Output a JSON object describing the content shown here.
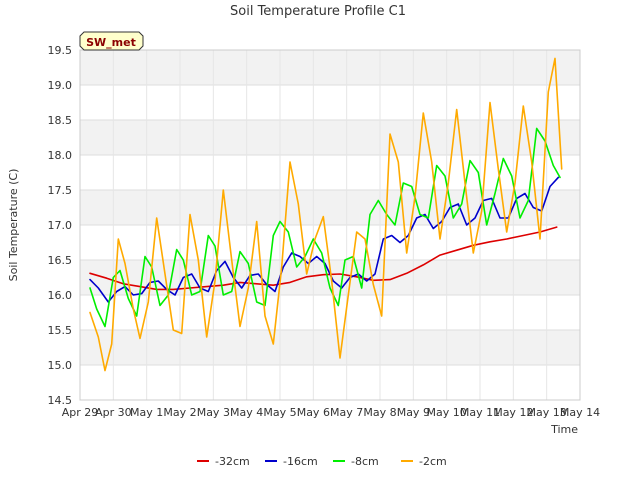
{
  "chart_data": {
    "type": "line",
    "title": "Soil Temperature Profile C1",
    "xlabel": "Time",
    "ylabel": "Soil Temperature (C)",
    "badge": "SW_met",
    "xlim": [
      0,
      15
    ],
    "ylim": [
      14.5,
      19.5
    ],
    "xticks": [
      {
        "v": 0,
        "label": "Apr 29"
      },
      {
        "v": 1,
        "label": "Apr 30"
      },
      {
        "v": 2,
        "label": "May 1"
      },
      {
        "v": 3,
        "label": "May 2"
      },
      {
        "v": 4,
        "label": "May 3"
      },
      {
        "v": 5,
        "label": "May 4"
      },
      {
        "v": 6,
        "label": "May 5"
      },
      {
        "v": 7,
        "label": "May 6"
      },
      {
        "v": 8,
        "label": "May 7"
      },
      {
        "v": 9,
        "label": "May 8"
      },
      {
        "v": 10,
        "label": "May 9"
      },
      {
        "v": 11,
        "label": "May 10"
      },
      {
        "v": 12,
        "label": "May 11"
      },
      {
        "v": 13,
        "label": "May 12"
      },
      {
        "v": 14,
        "label": "May 13"
      },
      {
        "v": 15,
        "label": "May 14"
      }
    ],
    "yticks": [
      14.5,
      15.0,
      15.5,
      16.0,
      16.5,
      17.0,
      17.5,
      18.0,
      18.5,
      19.0,
      19.5
    ],
    "grid": true,
    "legend_position": "bottom",
    "series": [
      {
        "name": "-32cm",
        "color": "#dd0000",
        "x": [
          0.3,
          0.8,
          1.3,
          1.8,
          2.3,
          2.8,
          3.3,
          3.8,
          4.3,
          4.8,
          5.3,
          5.8,
          6.3,
          6.8,
          7.3,
          7.8,
          8.3,
          8.8,
          9.3,
          9.8,
          10.3,
          10.8,
          11.3,
          11.8,
          12.3,
          12.8,
          13.3,
          13.8,
          14.3
        ],
        "y": [
          16.31,
          16.24,
          16.16,
          16.12,
          16.08,
          16.08,
          16.1,
          16.12,
          16.14,
          16.18,
          16.16,
          16.14,
          16.18,
          16.26,
          16.29,
          16.3,
          16.26,
          16.21,
          16.22,
          16.31,
          16.43,
          16.57,
          16.64,
          16.71,
          16.76,
          16.8,
          16.85,
          16.9,
          16.97
        ]
      },
      {
        "name": "-16cm",
        "color": "#0000cc",
        "x": [
          0.3,
          0.55,
          0.85,
          1.1,
          1.35,
          1.6,
          1.85,
          2.1,
          2.35,
          2.6,
          2.85,
          3.1,
          3.35,
          3.6,
          3.85,
          4.1,
          4.35,
          4.6,
          4.85,
          5.1,
          5.35,
          5.6,
          5.85,
          6.1,
          6.35,
          6.6,
          6.85,
          7.1,
          7.35,
          7.6,
          7.85,
          8.1,
          8.35,
          8.6,
          8.85,
          9.1,
          9.35,
          9.6,
          9.85,
          10.1,
          10.35,
          10.6,
          10.85,
          11.1,
          11.35,
          11.6,
          11.85,
          12.1,
          12.35,
          12.6,
          12.85,
          13.1,
          13.35,
          13.6,
          13.85,
          14.1,
          14.35
        ],
        "y": [
          16.22,
          16.1,
          15.9,
          16.05,
          16.12,
          16.0,
          16.02,
          16.18,
          16.2,
          16.08,
          16.0,
          16.25,
          16.3,
          16.1,
          16.05,
          16.35,
          16.48,
          16.25,
          16.1,
          16.28,
          16.3,
          16.15,
          16.05,
          16.4,
          16.6,
          16.55,
          16.45,
          16.55,
          16.45,
          16.2,
          16.1,
          16.25,
          16.3,
          16.2,
          16.3,
          16.8,
          16.85,
          16.75,
          16.85,
          17.1,
          17.15,
          16.95,
          17.05,
          17.25,
          17.3,
          17.0,
          17.1,
          17.35,
          17.38,
          17.1,
          17.1,
          17.38,
          17.45,
          17.25,
          17.2,
          17.55,
          17.68
        ]
      },
      {
        "name": "-8cm",
        "color": "#00ee00",
        "x": [
          0.3,
          0.5,
          0.75,
          1.0,
          1.2,
          1.45,
          1.7,
          1.95,
          2.15,
          2.4,
          2.65,
          2.9,
          3.1,
          3.35,
          3.6,
          3.85,
          4.05,
          4.3,
          4.55,
          4.8,
          5.05,
          5.3,
          5.55,
          5.8,
          6.0,
          6.25,
          6.5,
          6.75,
          7.0,
          7.25,
          7.5,
          7.75,
          7.95,
          8.2,
          8.45,
          8.7,
          8.95,
          9.2,
          9.45,
          9.7,
          9.95,
          10.2,
          10.45,
          10.7,
          10.95,
          11.2,
          11.45,
          11.7,
          11.95,
          12.2,
          12.45,
          12.7,
          12.95,
          13.2,
          13.45,
          13.7,
          13.95,
          14.2,
          14.4
        ],
        "y": [
          16.1,
          15.8,
          15.55,
          16.25,
          16.35,
          15.95,
          15.7,
          16.55,
          16.4,
          15.85,
          16.0,
          16.65,
          16.5,
          16.0,
          16.05,
          16.85,
          16.7,
          16.0,
          16.05,
          16.62,
          16.45,
          15.9,
          15.85,
          16.85,
          17.05,
          16.9,
          16.4,
          16.55,
          16.8,
          16.6,
          16.1,
          15.85,
          16.5,
          16.55,
          16.1,
          17.15,
          17.35,
          17.15,
          17.0,
          17.6,
          17.55,
          17.15,
          17.1,
          17.85,
          17.7,
          17.1,
          17.3,
          17.92,
          17.75,
          17.0,
          17.45,
          17.95,
          17.7,
          17.1,
          17.35,
          18.38,
          18.2,
          17.85,
          17.68
        ]
      },
      {
        "name": "-2cm",
        "color": "#ffaa00",
        "x": [
          0.3,
          0.55,
          0.75,
          0.95,
          1.15,
          1.35,
          1.6,
          1.8,
          2.05,
          2.3,
          2.55,
          2.8,
          3.05,
          3.3,
          3.55,
          3.8,
          4.05,
          4.3,
          4.55,
          4.8,
          5.05,
          5.3,
          5.55,
          5.8,
          6.05,
          6.3,
          6.55,
          6.8,
          7.05,
          7.3,
          7.55,
          7.8,
          8.05,
          8.3,
          8.55,
          8.8,
          9.05,
          9.3,
          9.55,
          9.8,
          10.05,
          10.3,
          10.55,
          10.8,
          11.05,
          11.3,
          11.55,
          11.8,
          12.05,
          12.3,
          12.55,
          12.8,
          13.05,
          13.3,
          13.55,
          13.8,
          14.05,
          14.25,
          14.45
        ],
        "y": [
          15.75,
          15.4,
          14.92,
          15.3,
          16.8,
          16.45,
          15.8,
          15.38,
          15.9,
          17.1,
          16.3,
          15.5,
          15.45,
          17.15,
          16.5,
          15.4,
          16.2,
          17.5,
          16.5,
          15.55,
          16.1,
          17.05,
          15.7,
          15.3,
          16.4,
          17.9,
          17.3,
          16.3,
          16.8,
          17.12,
          16.2,
          15.1,
          16.0,
          16.9,
          16.8,
          16.15,
          15.7,
          18.3,
          17.9,
          16.6,
          17.4,
          18.6,
          17.9,
          16.8,
          17.6,
          18.65,
          17.6,
          16.6,
          17.2,
          18.75,
          17.8,
          16.9,
          17.6,
          18.7,
          17.9,
          16.8,
          18.9,
          19.38,
          17.8
        ]
      }
    ]
  }
}
